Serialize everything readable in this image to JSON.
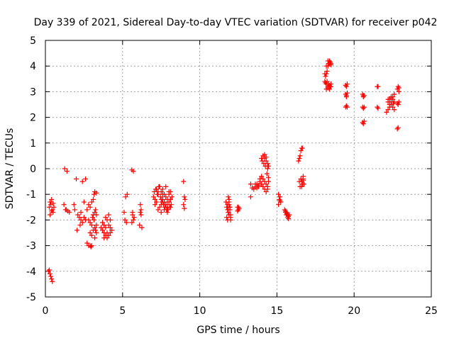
{
  "chart_data": {
    "type": "scatter",
    "title": "Day 339 of 2021, Sidereal Day-to-day VTEC variation (SDTVAR) for receiver p042",
    "xlabel": "GPS time / hours",
    "ylabel": "SDTVAR / TECUs",
    "xlim": [
      0,
      25
    ],
    "ylim": [
      -5,
      5
    ],
    "xticks": [
      0,
      5,
      10,
      15,
      20,
      25
    ],
    "yticks": [
      -5,
      -4,
      -3,
      -2,
      -1,
      0,
      1,
      2,
      3,
      4,
      5
    ],
    "grid": true,
    "legend": "none",
    "marker": "plus",
    "series": [
      {
        "name": "SDTVAR",
        "color": "#ff0000",
        "x": [
          0.2,
          0.25,
          0.3,
          0.35,
          0.4,
          0.45,
          0.25,
          0.3,
          0.35,
          0.4,
          0.45,
          0.5,
          0.55,
          0.3,
          0.4,
          0.5,
          1.25,
          1.4,
          1.3,
          1.45,
          1.55,
          1.2,
          1.35,
          1.85,
          1.9,
          2.0,
          2.05,
          2.1,
          2.2,
          2.25,
          2.3,
          2.4,
          2.5,
          2.6,
          2.7,
          2.8,
          2.9,
          2.95,
          3.0,
          3.1,
          3.15,
          3.2,
          3.3,
          2.8,
          2.9,
          3.0,
          3.05,
          3.1,
          3.2,
          3.25,
          3.3,
          3.15,
          3.2,
          3.25,
          3.3,
          2.9,
          3.0,
          3.1,
          3.2,
          3.3,
          2.5,
          2.6,
          2.9,
          3.0,
          2.4,
          2.3,
          2.7,
          2.8,
          3.6,
          3.7,
          3.8,
          3.9,
          4.0,
          4.1,
          4.2,
          4.3,
          3.7,
          3.8,
          3.9,
          4.0,
          4.1,
          4.2,
          3.8,
          4.0,
          4.2,
          3.9,
          4.1,
          5.2,
          5.3,
          5.1,
          5.25,
          5.15,
          5.6,
          5.7,
          5.65,
          5.75,
          5.6,
          5.7,
          5.65,
          6.15,
          6.2,
          6.25,
          6.1,
          6.2,
          6.15,
          7.0,
          7.1,
          7.2,
          7.3,
          7.4,
          7.5,
          7.6,
          7.7,
          7.8,
          7.9,
          8.0,
          8.1,
          8.2,
          7.05,
          7.15,
          7.25,
          7.35,
          7.45,
          7.55,
          7.65,
          7.75,
          7.85,
          7.95,
          8.05,
          8.15,
          7.2,
          7.3,
          7.4,
          7.5,
          7.6,
          7.7,
          7.8,
          7.9,
          8.0,
          8.1,
          7.1,
          7.3,
          7.5,
          7.7,
          7.9,
          8.1,
          7.4,
          7.6,
          7.8,
          8.0,
          7.5,
          7.7,
          7.9,
          8.1,
          8.95,
          9.0,
          9.05,
          8.95,
          9.0,
          11.7,
          11.75,
          11.8,
          11.85,
          11.9,
          11.95,
          12.0,
          11.75,
          11.8,
          11.85,
          11.9,
          11.95,
          12.0,
          11.8,
          11.85,
          11.9,
          11.95,
          12.0,
          11.85,
          11.9,
          12.45,
          12.5,
          12.55,
          12.45,
          12.5,
          13.3,
          13.3,
          13.4,
          13.5,
          13.6,
          13.7,
          13.8,
          13.9,
          14.0,
          14.1,
          14.2,
          14.3,
          14.4,
          14.45,
          13.9,
          14.0,
          14.1,
          14.2,
          14.3,
          14.4,
          14.0,
          14.1,
          14.2,
          14.3,
          14.4,
          14.45,
          13.6,
          14.2,
          14.3,
          14.4,
          13.7,
          13.8,
          14.05,
          14.15,
          14.25,
          14.35,
          14.45,
          15.1,
          15.15,
          15.2,
          15.25,
          15.1,
          15.2,
          15.5,
          15.55,
          15.6,
          15.65,
          15.7,
          15.75,
          15.8,
          15.55,
          15.65,
          15.75,
          15.6,
          15.7,
          16.4,
          16.45,
          16.5,
          16.55,
          16.6,
          16.65,
          16.7,
          16.75,
          16.5,
          16.6,
          16.7,
          16.45,
          16.55,
          16.65,
          16.6,
          16.7,
          18.1,
          18.15,
          18.2,
          18.25,
          18.3,
          18.35,
          18.4,
          18.45,
          18.5,
          18.2,
          18.3,
          18.4,
          18.5,
          18.1,
          18.2,
          18.3,
          18.4,
          18.5,
          18.15,
          18.25,
          18.35,
          18.45,
          18.2,
          18.3,
          18.4,
          18.5,
          19.45,
          19.5,
          19.55,
          19.45,
          19.5,
          19.55,
          19.45,
          19.5,
          19.55,
          19.5,
          20.55,
          20.6,
          20.65,
          20.55,
          20.6,
          20.65,
          20.55,
          20.6,
          20.65,
          20.6,
          21.5,
          21.55,
          21.5,
          21.55,
          22.1,
          22.2,
          22.3,
          22.4,
          22.5,
          22.6,
          22.2,
          22.3,
          22.4,
          22.5,
          22.6,
          22.3,
          22.4,
          22.5,
          22.6,
          22.2,
          22.4,
          22.55,
          22.8,
          22.85,
          22.9,
          22.8,
          22.85,
          22.9,
          22.85,
          22.8,
          22.9
        ],
        "y": [
          -4.0,
          -3.95,
          -4.1,
          -4.2,
          -4.3,
          -4.4,
          -1.5,
          -1.3,
          -1.4,
          -1.2,
          -1.6,
          -1.7,
          -1.5,
          -1.8,
          -1.65,
          -1.35,
          0.0,
          -0.1,
          -1.6,
          -1.65,
          -1.7,
          -1.4,
          -1.6,
          -1.4,
          -1.6,
          -0.4,
          -2.4,
          -1.8,
          -1.9,
          -2.2,
          -2.0,
          -0.5,
          -1.3,
          -0.4,
          -2.9,
          -3.0,
          -3.0,
          -3.05,
          -3.0,
          -1.2,
          -1.0,
          -0.9,
          -0.95,
          -2.0,
          -2.1,
          -2.2,
          -1.9,
          -1.8,
          -2.3,
          -2.4,
          -2.2,
          -2.0,
          -1.7,
          -1.6,
          -1.8,
          -2.5,
          -2.6,
          -2.4,
          -2.7,
          -2.5,
          -1.9,
          -2.0,
          -1.5,
          -1.3,
          -2.1,
          -1.7,
          -1.6,
          -1.4,
          -2.3,
          -2.4,
          -2.5,
          -2.6,
          -2.7,
          -2.6,
          -2.5,
          -2.4,
          -2.1,
          -2.2,
          -2.3,
          -2.0,
          -2.2,
          -2.0,
          -2.7,
          -2.5,
          -2.3,
          -1.9,
          -1.8,
          -1.1,
          -1.0,
          -1.7,
          -2.1,
          -2.0,
          -0.05,
          -0.1,
          -1.7,
          -1.9,
          -2.1,
          -2.0,
          -1.8,
          -1.7,
          -1.8,
          -2.3,
          -2.2,
          -1.6,
          -1.4,
          -1.1,
          -1.2,
          -1.3,
          -1.0,
          -1.5,
          -1.4,
          -1.2,
          -1.3,
          -1.4,
          -1.5,
          -1.3,
          -1.2,
          -1.1,
          -0.9,
          -0.8,
          -1.0,
          -0.7,
          -1.1,
          -1.3,
          -1.4,
          -1.5,
          -1.6,
          -1.6,
          -1.5,
          -1.4,
          -0.8,
          -0.9,
          -0.7,
          -0.9,
          -1.0,
          -1.0,
          -1.1,
          -1.2,
          -1.0,
          -0.9,
          -1.4,
          -1.6,
          -1.7,
          -1.6,
          -1.7,
          -1.5,
          -0.7,
          -0.8,
          -0.7,
          -0.9,
          -1.2,
          -1.3,
          -1.4,
          -1.2,
          -0.5,
          -1.1,
          -1.2,
          -1.4,
          -1.55,
          -1.3,
          -1.5,
          -1.6,
          -1.7,
          -1.4,
          -1.6,
          -1.8,
          -1.9,
          -2.0,
          -1.7,
          -1.8,
          -1.5,
          -1.9,
          -1.4,
          -1.6,
          -1.3,
          -1.5,
          -2.0,
          -1.1,
          -1.2,
          -1.5,
          -1.6,
          -1.55,
          -1.65,
          -1.5,
          -0.6,
          -1.1,
          -0.75,
          -0.8,
          -0.7,
          -0.6,
          -0.65,
          -0.5,
          0.4,
          0.5,
          0.4,
          0.3,
          0.2,
          0.1,
          -0.4,
          -0.6,
          -0.7,
          -0.8,
          -0.9,
          -0.8,
          -0.3,
          -0.4,
          -0.5,
          -0.6,
          -0.7,
          -0.5,
          -0.6,
          0.55,
          0.45,
          0.0,
          -0.75,
          -0.7,
          0.3,
          0.2,
          0.1,
          -0.2,
          -0.35,
          -1.0,
          -1.2,
          -1.1,
          -1.3,
          -1.4,
          -1.25,
          -1.6,
          -1.7,
          -1.8,
          -1.75,
          -1.9,
          -1.85,
          -1.8,
          -1.65,
          -1.75,
          -1.95,
          -1.7,
          -1.8,
          0.3,
          0.4,
          0.5,
          0.7,
          0.8,
          0.8,
          -0.4,
          -0.6,
          -0.7,
          -0.5,
          -0.3,
          -0.5,
          -0.4,
          -0.6,
          -0.7,
          -0.45,
          3.7,
          3.6,
          3.7,
          3.8,
          4.0,
          4.1,
          4.2,
          4.15,
          4.1,
          4.0,
          4.2,
          4.1,
          4.05,
          3.4,
          3.3,
          3.2,
          3.25,
          3.3,
          3.35,
          3.4,
          3.3,
          3.2,
          3.1,
          3.15,
          3.1,
          3.2,
          3.25,
          3.2,
          3.3,
          2.9,
          2.8,
          2.95,
          2.4,
          2.45,
          2.4,
          2.85,
          2.9,
          2.8,
          2.85,
          2.4,
          2.35,
          2.4,
          1.8,
          1.75,
          1.85,
          2.85,
          3.2,
          3.2,
          2.4,
          2.35,
          2.2,
          2.3,
          2.4,
          2.5,
          2.4,
          2.3,
          2.6,
          2.7,
          2.8,
          2.7,
          2.6,
          2.5,
          2.6,
          2.8,
          2.9,
          2.7,
          2.75,
          2.55,
          3.1,
          3.2,
          3.0,
          2.55,
          2.5,
          2.6,
          1.6,
          1.55,
          3.15
        ]
      }
    ]
  }
}
